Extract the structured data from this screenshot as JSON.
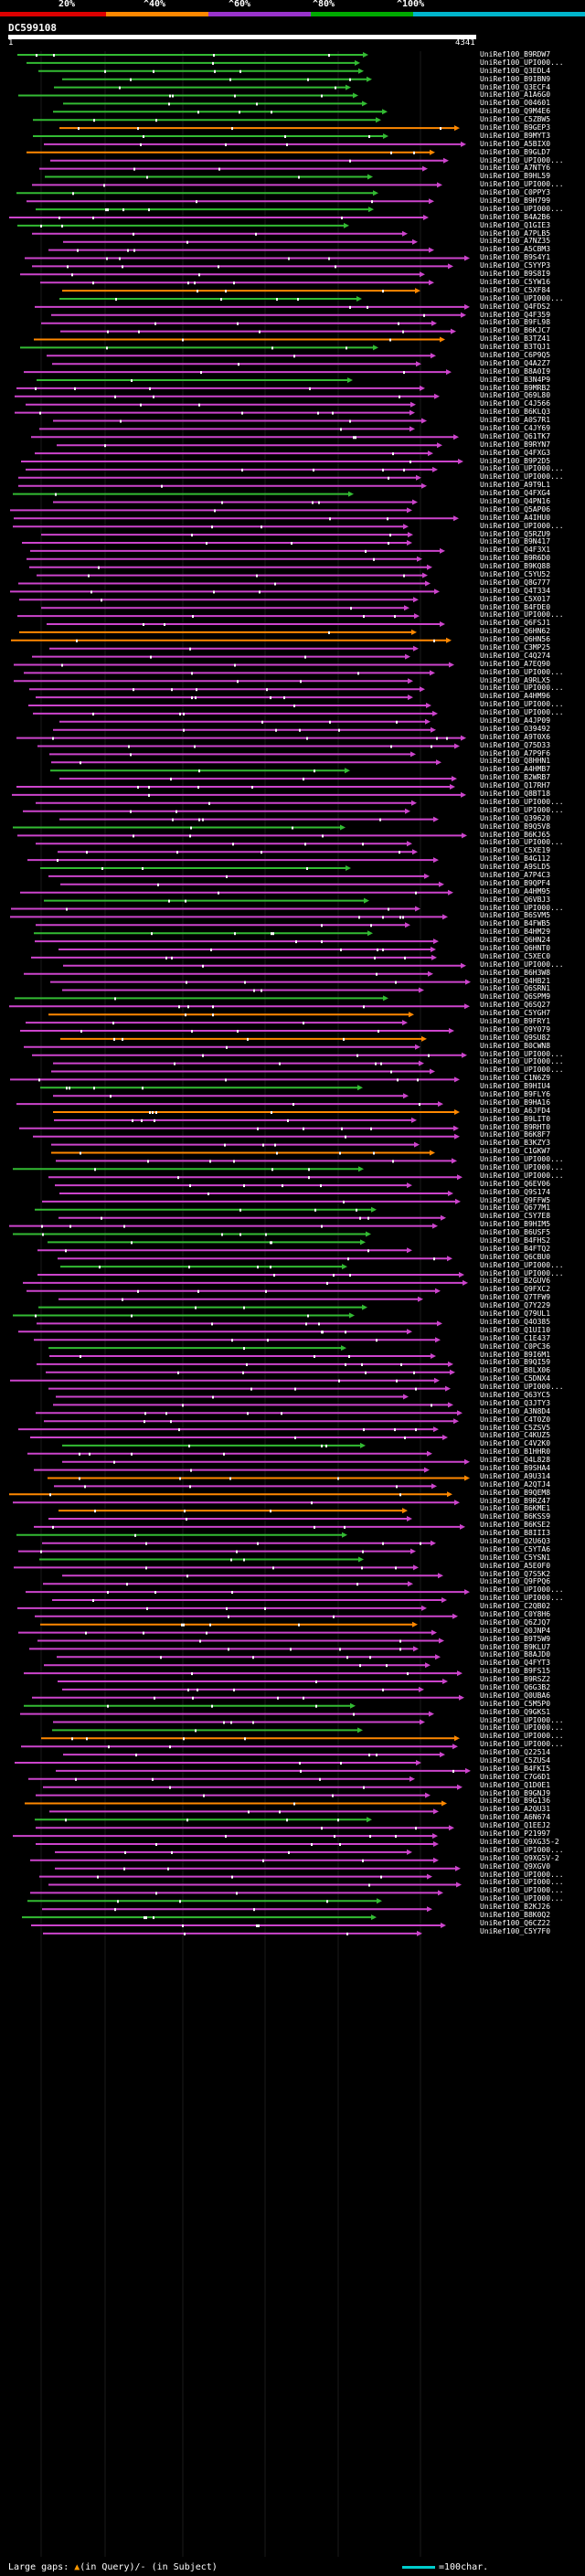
{
  "legend": {
    "labels": [
      "20%",
      "^40%",
      "^60%",
      "^80%",
      "^100%"
    ],
    "colors": [
      "#dd0000",
      "#ff8800",
      "#9933cc",
      "#00aa00",
      "#00b5cc"
    ]
  },
  "query": {
    "name": "DC599108",
    "start_label": "1",
    "end_label": "4341",
    "length": 4341
  },
  "hits": [
    "UniRef100_B9RDW7",
    "UniRef100_UPI000...",
    "UniRef100_Q3EDL4",
    "UniRef100_B9IBN9",
    "UniRef100_Q3ECF4",
    "UniRef100_A1A6G0",
    "UniRef100_O04601",
    "UniRef100_Q9M4E6",
    "UniRef100_C5ZBW5",
    "UniRef100_B9GEP3",
    "UniRef100_B9MYT3",
    "UniRef100_A5BIX0",
    "UniRef100_B9GLD7",
    "UniRef100_UPI000...",
    "UniRef100_A7NTY6",
    "UniRef100_B9HL59",
    "UniRef100_UPI000...",
    "UniRef100_C0PPY3",
    "UniRef100_B9H799",
    "UniRef100_UPI000...",
    "UniRef100_B4A2B6",
    "UniRef100_Q1GIE3",
    "UniRef100_A7PLB5",
    "UniRef100_A7NZ35",
    "UniRef100_A5CBM3",
    "UniRef100_B9S4Y1",
    "UniRef100_C5YYP3",
    "UniRef100_B9S8I9",
    "UniRef100_C5YW16",
    "UniRef100_C5XF84",
    "UniRef100_UPI000...",
    "UniRef100_Q4FDS2",
    "UniRef100_Q4F359",
    "UniRef100_B9FL98",
    "UniRef100_B6KJC7",
    "UniRef100_B3TZ41",
    "UniRef100_B3TQJ1",
    "UniRef100_C6P9Q5",
    "UniRef100_Q4A2Z7",
    "UniRef100_B8A0I9",
    "UniRef100_B3N4P9",
    "UniRef100_B9MRB2",
    "UniRef100_Q69L80",
    "UniRef100_C4J566",
    "UniRef100_B6KLQ3",
    "UniRef100_A0S7R1",
    "UniRef100_C4JY69",
    "UniRef100_Q61TK7",
    "UniRef100_B9RYN7",
    "UniRef100_Q4FXG3",
    "UniRef100_B9P2D5",
    "UniRef100_UPI000...",
    "UniRef100_UPI000...",
    "UniRef100_A9T9L1",
    "UniRef100_Q4FXG4",
    "UniRef100_Q4PN16",
    "UniRef100_Q5AP06",
    "UniRef100_A4IHU0",
    "UniRef100_UPI000...",
    "UniRef100_Q5RZU9",
    "UniRef100_B9N417",
    "UniRef100_Q4F3X1",
    "UniRef100_B9R6D0",
    "UniRef100_B9KQ88",
    "UniRef100_C5YU52",
    "UniRef100_Q8G777",
    "UniRef100_Q4T334",
    "UniRef100_C5X017",
    "UniRef100_B4FDE0",
    "UniRef100_UPI000...",
    "UniRef100_Q6FSJ1",
    "UniRef100_Q6HN62",
    "UniRef100_Q6HN56",
    "UniRef100_C3MP25",
    "UniRef100_C4Q274",
    "UniRef100_A7EQ90",
    "UniRef100_UPI000...",
    "UniRef100_A9RLX5",
    "UniRef100_UPI000...",
    "UniRef100_A4HM96",
    "UniRef100_UPI000...",
    "UniRef100_UPI000...",
    "UniRef100_A4JP09",
    "UniRef100_O39492",
    "UniRef100_A9T0X6",
    "UniRef100_Q75D33",
    "UniRef100_A7P9F6",
    "UniRef100_Q8HHN1",
    "UniRef100_A4HMB7",
    "UniRef100_B2WRB7",
    "UniRef100_Q17RH7",
    "UniRef100_Q8BT18",
    "UniRef100_UPI000...",
    "UniRef100_UPI000...",
    "UniRef100_Q39620",
    "UniRef100_B9Q5V8",
    "UniRef100_B6KJ65",
    "UniRef100_UPI000...",
    "UniRef100_C5XE19",
    "UniRef100_B4G112",
    "UniRef100_A9SLD5",
    "UniRef100_A7P4C3",
    "UniRef100_B9QPF4",
    "UniRef100_A4HM95",
    "UniRef100_Q6VBJ3",
    "UniRef100_UPI000...",
    "UniRef100_B6SVM5",
    "UniRef100_B4FWB5",
    "UniRef100_B4HM29",
    "UniRef100_Q6HN24",
    "UniRef100_Q6HNT0",
    "UniRef100_C5XEC0",
    "UniRef100_UPI000...",
    "UniRef100_B6H3W8",
    "UniRef100_Q4HB21",
    "UniRef100_Q6SRN1",
    "UniRef100_Q6SPM9",
    "UniRef100_Q6SQ27",
    "UniRef100_C5YGH7",
    "UniRef100_B9FRY1",
    "UniRef100_Q9Y079",
    "UniRef100_Q9SU82",
    "UniRef100_B0CWN8",
    "UniRef100_UPI000...",
    "UniRef100_UPI000...",
    "UniRef100_UPI000...",
    "UniRef100_C1N6Z9",
    "UniRef100_B9HIU4",
    "UniRef100_B9FLY6",
    "UniRef100_B9HA16",
    "UniRef100_A6JFD4",
    "UniRef100_B9LIT0",
    "UniRef100_B9RHT0",
    "UniRef100_B6K8F7",
    "UniRef100_B3KZY3",
    "UniRef100_C1GKW7",
    "UniRef100_UPI000...",
    "UniRef100_UPI000...",
    "UniRef100_UPI000...",
    "UniRef100_Q6EV06",
    "UniRef100_Q9S174",
    "UniRef100_Q9FFW5",
    "UniRef100_Q677M1",
    "UniRef100_C5Y7E8",
    "UniRef100_B9HIM5",
    "UniRef100_B6USF5",
    "UniRef100_B4FHS2",
    "UniRef100_B4FTQ2",
    "UniRef100_Q6CBU0",
    "UniRef100_UPI000...",
    "UniRef100_UPI000...",
    "UniRef100_B2GUV6",
    "UniRef100_Q9FXC2",
    "UniRef100_Q7TFW9",
    "UniRef100_Q7Y229",
    "UniRef100_Q79UL1",
    "UniRef100_Q4O385",
    "UniRef100_Q1UI10",
    "UniRef100_C1E437",
    "UniRef100_C0PC36",
    "UniRef100_B9I6M1",
    "UniRef100_B9QI59",
    "UniRef100_B8LX06",
    "UniRef100_C5DNX4",
    "UniRef100_UPI000...",
    "UniRef100_Q63YC5",
    "UniRef100_Q3JTY3",
    "UniRef100_A3N8D4",
    "UniRef100_C4T0Z0",
    "UniRef100_C5ZSV5",
    "UniRef100_C4KUZ5",
    "UniRef100_C4V2K0",
    "UniRef100_B1HHR0",
    "UniRef100_Q4L828",
    "UniRef100_B9SHA4",
    "UniRef100_A9U314",
    "UniRef100_A2QTJ4",
    "UniRef100_B9QEM8",
    "UniRef100_B9RZ47",
    "UniRef100_B6KME1",
    "UniRef100_B6KSS9",
    "UniRef100_B6KSE2",
    "UniRef100_B8III3",
    "UniRef100_Q2U6Q3",
    "UniRef100_C5YTA6",
    "UniRef100_C5YSN1",
    "UniRef100_A5E0F0",
    "UniRef100_Q7S5K2",
    "UniRef100_Q9FPQ6",
    "UniRef100_UPI000...",
    "UniRef100_UPI000...",
    "UniRef100_C2QB02",
    "UniRef100_C0Y8H6",
    "UniRef100_Q6ZJQ7",
    "UniRef100_Q0JNP4",
    "UniRef100_B9T5W9",
    "UniRef100_B9KLU7",
    "UniRef100_B8AJD0",
    "UniRef100_Q4FYT3",
    "UniRef100_B9FS15",
    "UniRef100_B9RSZ2",
    "UniRef100_Q6G3B2",
    "UniRef100_Q0UBA6",
    "UniRef100_C5M5P0",
    "UniRef100_Q9GKS1",
    "UniRef100_UPI000...",
    "UniRef100_UPI000...",
    "UniRef100_UPI000...",
    "UniRef100_UPI000...",
    "UniRef100_Q22514",
    "UniRef100_C5ZUS4",
    "UniRef100_B4FKI5",
    "UniRef100_C7G6D1",
    "UniRef100_Q1D0E1",
    "UniRef100_B9GNJ9",
    "UniRef100_B9G136",
    "UniRef100_A2QU31",
    "UniRef100_A6N674",
    "UniRef100_Q1EEJ2",
    "UniRef100_P21997",
    "UniRef100_Q9XG35-2",
    "UniRef100_UPI000...",
    "UniRef100_Q9XG5V-2",
    "UniRef100_Q9XGV0",
    "UniRef100_UPI000...",
    "UniRef100_UPI000...",
    "UniRef100_UPI000...",
    "UniRef100_UPI000...",
    "UniRef100_B2KJ26",
    "UniRef100_B8K0Q2",
    "UniRef100_Q6CZ22",
    "UniRef100_C5Y7F0"
  ],
  "footer": {
    "prefix": "Large gaps: ",
    "up_arrow": "▲",
    "mid": "(in Query)/",
    "down": "-",
    "suffix": " (in Subject)",
    "scale": "=100char."
  }
}
